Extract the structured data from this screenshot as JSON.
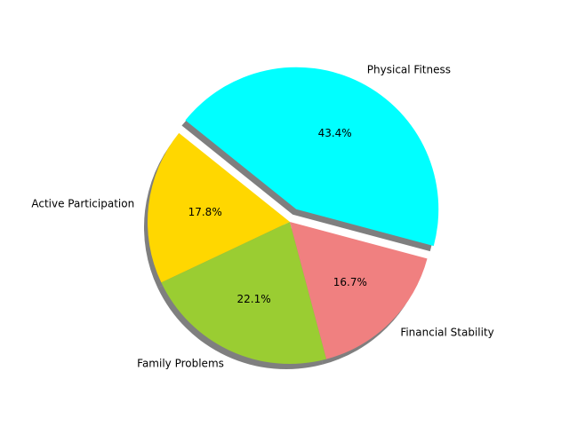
{
  "chart_data": {
    "type": "pie",
    "title": "",
    "slices": [
      {
        "label": "Physical Fitness",
        "value": 43.4,
        "pct_label": "43.4%",
        "color": "#00ffff",
        "explode": true
      },
      {
        "label": "Active Participation",
        "value": 17.8,
        "pct_label": "17.8%",
        "color": "#ffd700",
        "explode": false
      },
      {
        "label": "Family Problems",
        "value": 22.1,
        "pct_label": "22.1%",
        "color": "#9acd32",
        "explode": false
      },
      {
        "label": "Financial Stability",
        "value": 16.7,
        "pct_label": "16.7%",
        "color": "#f08080",
        "explode": false
      }
    ],
    "start_angle_deg": -15,
    "direction": "counterclockwise",
    "shadow": true,
    "legend": "none"
  }
}
